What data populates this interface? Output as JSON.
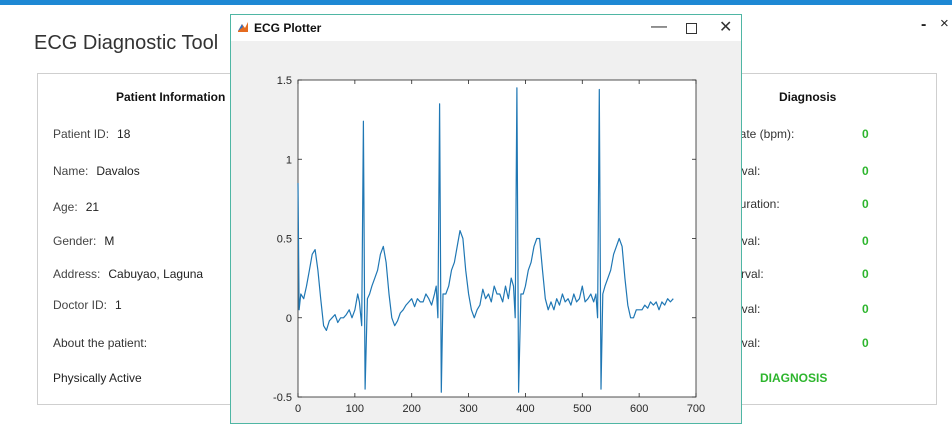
{
  "app": {
    "title": "ECG Diagnostic Tool",
    "minimize": "-",
    "close": "×"
  },
  "patient": {
    "heading": "Patient Information",
    "id_label": "Patient ID:",
    "id_value": "18",
    "name_label": "Name:",
    "name_value": "Davalos",
    "age_label": "Age:",
    "age_value": "21",
    "gender_label": "Gender:",
    "gender_value": "M",
    "address_label": "Address:",
    "address_value": "Cabuyao, Laguna",
    "doctor_label": "Doctor ID:",
    "doctor_value": "1",
    "about_label": "About the patient:",
    "about_value": "Physically Active"
  },
  "diagnosis": {
    "heading": "Diagnosis",
    "rows": [
      {
        "label": "Rate (bpm):",
        "value": "0"
      },
      {
        "label": "erval:",
        "value": "0"
      },
      {
        "label": "Duration:",
        "value": "0"
      },
      {
        "label": "erval:",
        "value": "0"
      },
      {
        "label": "terval:",
        "value": "0"
      },
      {
        "label": "erval:",
        "value": "0"
      },
      {
        "label": "erval:",
        "value": "0"
      }
    ],
    "button": "DIAGNOSIS"
  },
  "plot_window": {
    "title": "ECG Plotter",
    "minimize": "—",
    "close": "✕"
  },
  "chart_data": {
    "type": "line",
    "title": "",
    "xlabel": "",
    "ylabel": "",
    "xlim": [
      0,
      700
    ],
    "ylim": [
      -0.5,
      1.5
    ],
    "xticks": [
      0,
      100,
      200,
      300,
      400,
      500,
      600,
      700
    ],
    "yticks": [
      -0.5,
      0,
      0.5,
      1,
      1.5
    ],
    "grid": false,
    "series_color": "#1f77b4",
    "series": [
      {
        "x": [
          0,
          2,
          5,
          10,
          15,
          20,
          25,
          30,
          35,
          40,
          45,
          50,
          55,
          60,
          65,
          70,
          75,
          80,
          85,
          90,
          95,
          100,
          105,
          108,
          112,
          115,
          118,
          122,
          126,
          130,
          135,
          140,
          145,
          150,
          155,
          160,
          165,
          170,
          175,
          180,
          185,
          190,
          195,
          200,
          205,
          210,
          215,
          220,
          225,
          230,
          235,
          240,
          243,
          246,
          249,
          252,
          255,
          260,
          265,
          270,
          275,
          280,
          285,
          290,
          295,
          300,
          305,
          310,
          315,
          320,
          325,
          330,
          335,
          340,
          345,
          350,
          355,
          360,
          365,
          370,
          375,
          379,
          382,
          385,
          388,
          392,
          396,
          400,
          405,
          410,
          415,
          420,
          425,
          430,
          435,
          440,
          445,
          450,
          455,
          460,
          465,
          470,
          475,
          480,
          485,
          490,
          495,
          500,
          505,
          510,
          515,
          520,
          524,
          527,
          530,
          533,
          536,
          540,
          545,
          550,
          555,
          560,
          565,
          570,
          575,
          580,
          585,
          590,
          595,
          600,
          605,
          610,
          615,
          620,
          625,
          630,
          635,
          640,
          645,
          650,
          655,
          660
        ],
        "y": [
          0.85,
          0.05,
          0.15,
          0.12,
          0.2,
          0.3,
          0.4,
          0.43,
          0.3,
          0.12,
          -0.05,
          -0.08,
          -0.02,
          0.0,
          0.02,
          -0.03,
          0.0,
          0.0,
          0.02,
          0.05,
          0.0,
          0.05,
          0.15,
          0.1,
          -0.05,
          1.24,
          -0.45,
          0.12,
          0.15,
          0.2,
          0.25,
          0.3,
          0.4,
          0.45,
          0.35,
          0.15,
          0.0,
          -0.05,
          -0.02,
          0.03,
          0.05,
          0.08,
          0.1,
          0.12,
          0.07,
          0.12,
          0.1,
          0.1,
          0.15,
          0.12,
          0.08,
          0.15,
          0.2,
          0.0,
          1.35,
          -0.47,
          0.15,
          0.15,
          0.2,
          0.3,
          0.35,
          0.45,
          0.55,
          0.5,
          0.3,
          0.15,
          0.05,
          0.0,
          0.05,
          0.08,
          0.18,
          0.12,
          0.15,
          0.1,
          0.2,
          0.15,
          0.15,
          0.1,
          0.2,
          0.12,
          0.25,
          0.2,
          0.0,
          1.45,
          -0.47,
          0.15,
          0.15,
          0.2,
          0.3,
          0.35,
          0.45,
          0.5,
          0.5,
          0.3,
          0.12,
          0.05,
          0.1,
          0.05,
          0.12,
          0.08,
          0.15,
          0.1,
          0.12,
          0.08,
          0.15,
          0.1,
          0.12,
          0.2,
          0.1,
          0.12,
          0.15,
          0.1,
          0.15,
          0.0,
          1.44,
          -0.45,
          0.15,
          0.2,
          0.25,
          0.3,
          0.4,
          0.45,
          0.5,
          0.45,
          0.25,
          0.08,
          0.0,
          0.0,
          0.05,
          0.05,
          0.05,
          0.08,
          0.06,
          0.1,
          0.08,
          0.1,
          0.05,
          0.1,
          0.08,
          0.12,
          0.1,
          0.12
        ]
      }
    ]
  }
}
